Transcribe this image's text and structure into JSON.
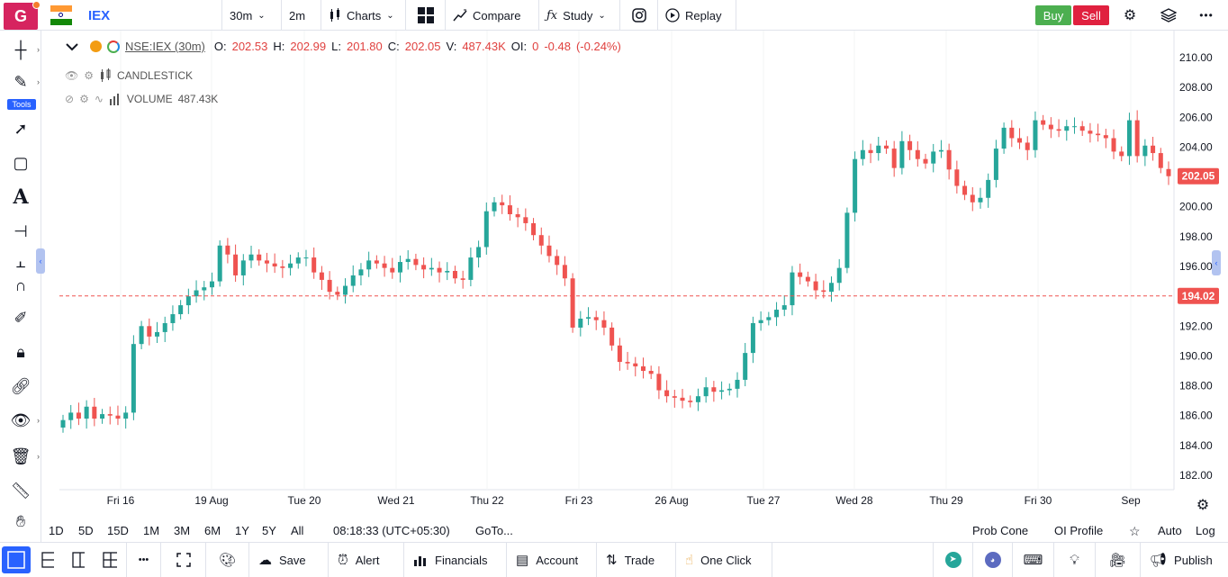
{
  "topbar": {
    "logo_letter": "G",
    "symbol": "IEX",
    "interval": "30m",
    "interval2": "2m",
    "charts_label": "Charts",
    "compare_label": "Compare",
    "study_label": "Study",
    "replay_label": "Replay",
    "buy_label": "Buy",
    "sell_label": "Sell"
  },
  "left_tools": {
    "tools_label": "Tools"
  },
  "legend": {
    "symbol": "NSE:IEX (30m)",
    "o_label": "O:",
    "o": "202.53",
    "h_label": "H:",
    "h": "202.99",
    "l_label": "L:",
    "l": "201.80",
    "c_label": "C:",
    "c": "202.05",
    "v_label": "V:",
    "v": "487.43K",
    "oi_label": "OI:",
    "oi": "0",
    "change": "-0.48",
    "change_pct": "(-0.24%)",
    "series1": "CANDLESTICK",
    "series2": "VOLUME",
    "series2_value": "487.43K"
  },
  "chart_data": {
    "type": "candlestick",
    "y_ticks": [
      "210.00",
      "208.00",
      "206.00",
      "204.00",
      "202.00",
      "200.00",
      "198.00",
      "196.00",
      "194.00",
      "192.00",
      "190.00",
      "188.00",
      "186.00",
      "184.00",
      "182.00"
    ],
    "ylim": [
      181.5,
      210.5
    ],
    "x_ticks": [
      "Fri 16",
      "19 Aug",
      "Tue 20",
      "Wed 21",
      "Thu 22",
      "Fri 23",
      "26 Aug",
      "Tue 27",
      "Wed 28",
      "Thu 29",
      "Fri 30",
      "Sep"
    ],
    "last_price": "202.05",
    "ref_line_price": "194.02",
    "ref_line_value": 194.02,
    "last_value": 202.05,
    "closes": [
      185.7,
      186.2,
      185.8,
      186.6,
      185.8,
      186.1,
      186.0,
      185.8,
      186.2,
      190.8,
      192.0,
      191.3,
      191.6,
      192.2,
      192.8,
      193.4,
      194.0,
      194.4,
      194.6,
      195.0,
      197.4,
      196.8,
      195.4,
      196.4,
      196.8,
      196.4,
      196.2,
      196.0,
      195.9,
      196.2,
      196.6,
      196.6,
      195.6,
      195.1,
      194.3,
      194.1,
      194.7,
      195.4,
      195.8,
      196.4,
      196.2,
      195.9,
      195.6,
      196.3,
      196.5,
      196.1,
      195.8,
      195.9,
      195.6,
      195.7,
      195.2,
      195.1,
      196.6,
      197.3,
      199.7,
      200.3,
      200.1,
      199.5,
      199.3,
      198.9,
      198.1,
      197.4,
      196.7,
      196.1,
      195.2,
      191.9,
      192.5,
      192.6,
      192.4,
      191.9,
      190.7,
      189.6,
      189.5,
      189.3,
      189.0,
      188.8,
      187.7,
      187.3,
      187.2,
      187.0,
      186.9,
      187.3,
      187.9,
      187.6,
      187.7,
      187.8,
      188.4,
      190.2,
      192.2,
      192.4,
      192.6,
      193.1,
      193.4,
      195.6,
      195.3,
      195.0,
      194.4,
      194.3,
      194.9,
      195.9,
      199.6,
      203.2,
      203.8,
      203.6,
      204.1,
      203.9,
      202.6,
      204.4,
      203.8,
      203.2,
      202.9,
      203.7,
      203.8,
      202.5,
      201.4,
      200.8,
      200.3,
      200.6,
      201.8,
      203.9,
      205.3,
      204.6,
      204.3,
      203.8,
      205.8,
      205.5,
      205.2,
      205.1,
      205.4,
      205.4,
      205.1,
      204.9,
      204.8,
      204.6,
      203.7,
      203.4,
      205.8,
      203.4,
      204.1,
      203.6,
      202.6,
      202.05
    ],
    "opens": [
      185.2,
      185.7,
      186.2,
      185.8,
      186.6,
      185.8,
      186.1,
      186.0,
      185.8,
      186.2,
      190.8,
      192.0,
      191.3,
      191.6,
      192.2,
      192.8,
      193.4,
      194.0,
      194.4,
      194.6,
      195.0,
      197.4,
      196.8,
      195.4,
      196.4,
      196.8,
      196.4,
      196.2,
      196.0,
      195.9,
      196.2,
      196.6,
      196.6,
      195.6,
      195.1,
      194.3,
      194.1,
      194.7,
      195.4,
      195.8,
      196.4,
      196.2,
      195.9,
      195.6,
      196.3,
      196.5,
      196.1,
      195.8,
      195.9,
      195.6,
      195.7,
      195.2,
      195.1,
      196.6,
      197.3,
      199.7,
      200.3,
      200.1,
      199.5,
      199.3,
      198.9,
      198.1,
      197.4,
      196.7,
      196.1,
      195.2,
      191.9,
      192.5,
      192.6,
      192.4,
      191.9,
      190.7,
      189.6,
      189.5,
      189.3,
      189.0,
      188.8,
      187.7,
      187.3,
      187.2,
      187.0,
      186.9,
      187.3,
      187.9,
      187.6,
      187.7,
      187.8,
      188.4,
      190.2,
      192.2,
      192.4,
      192.6,
      193.1,
      193.4,
      195.6,
      195.3,
      195.0,
      194.4,
      194.3,
      194.9,
      195.9,
      199.6,
      203.2,
      203.8,
      203.6,
      204.1,
      203.9,
      202.6,
      204.4,
      203.8,
      203.2,
      202.9,
      203.7,
      203.8,
      202.5,
      201.4,
      200.8,
      200.3,
      200.6,
      201.8,
      203.9,
      205.3,
      204.6,
      204.3,
      203.8,
      205.8,
      205.5,
      205.2,
      205.1,
      205.4,
      205.4,
      205.1,
      204.9,
      204.8,
      204.6,
      203.7,
      203.4,
      205.8,
      203.4,
      204.1,
      203.6,
      202.53
    ]
  },
  "bottom_bar": {
    "ranges": [
      "1D",
      "5D",
      "15D",
      "1M",
      "3M",
      "6M",
      "1Y",
      "5Y",
      "All"
    ],
    "time": "08:18:33 (UTC+05:30)",
    "goto": "GoTo...",
    "prob_cone": "Prob Cone",
    "oi_profile": "OI Profile",
    "auto": "Auto",
    "log": "Log"
  },
  "footer": {
    "save": "Save",
    "alert": "Alert",
    "financials": "Financials",
    "account": "Account",
    "trade": "Trade",
    "one_click": "One Click",
    "publish": "Publish"
  },
  "colors": {
    "up": "#26a69a",
    "down": "#ef5350",
    "accent": "#2962ff"
  }
}
